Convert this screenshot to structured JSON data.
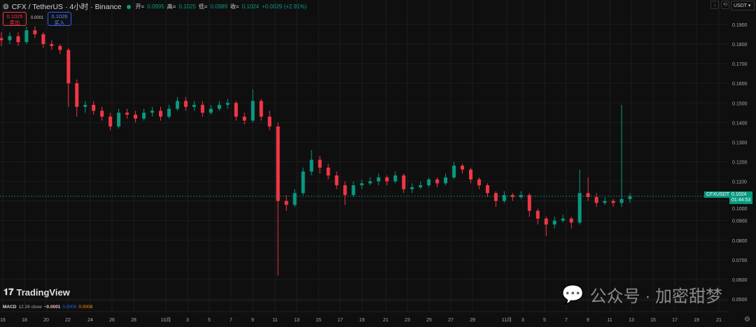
{
  "header": {
    "symbol": "CFX / TetherUS · 4小时 · Binance",
    "open_label": "开=",
    "open": "0.0995",
    "high_label": "高=",
    "high": "0.1025",
    "low_label": "低=",
    "low": "0.0989",
    "close_label": "收=",
    "close": "0.1024",
    "change": "+0.0029 (+2.91%)"
  },
  "trade": {
    "sell_price": "0.1025",
    "sell_label": "卖出",
    "spread": "0.0001",
    "buy_price": "0.1026",
    "buy_label": "买入"
  },
  "toolbar": {
    "currency": "USDT",
    "icons": [
      "arrow-down-icon",
      "refresh-icon"
    ]
  },
  "logo": "TradingView",
  "macd": {
    "label": "MACD",
    "params": "12 26 close",
    "v1": "−0.0001",
    "v2": "0.0006",
    "v3": "0.0008"
  },
  "watermark": "公众号 · 加密甜梦",
  "price_badge": {
    "symbol": "CFXUSDT",
    "price": "0.1024",
    "countdown": "01:44:53"
  },
  "colors": {
    "up": "#089981",
    "down": "#f23645"
  },
  "chart_data": {
    "type": "candlestick",
    "ylim": [
      0.05,
      0.19
    ],
    "y_ticks": [
      "0.1900",
      "0.1800",
      "0.1700",
      "0.1600",
      "0.1500",
      "0.1400",
      "0.1300",
      "0.1200",
      "0.1100",
      "0.1000",
      "0.0900",
      "0.0800",
      "0.0700",
      "0.0600",
      "0.0500"
    ],
    "x_ticks": [
      "16",
      "18",
      "20",
      "22",
      "24",
      "26",
      "28",
      "10月",
      "3",
      "5",
      "7",
      "9",
      "11",
      "13",
      "15",
      "17",
      "19",
      "21",
      "23",
      "25",
      "27",
      "29",
      "11月",
      "3",
      "5",
      "7",
      "9",
      "11",
      "13",
      "15",
      "17",
      "19",
      "21"
    ],
    "last_price": 0.1024,
    "candles": [
      [
        0.183,
        0.186,
        0.179,
        0.182
      ],
      [
        0.182,
        0.186,
        0.18,
        0.184
      ],
      [
        0.184,
        0.186,
        0.179,
        0.181
      ],
      [
        0.181,
        0.189,
        0.18,
        0.187
      ],
      [
        0.187,
        0.189,
        0.183,
        0.185
      ],
      [
        0.185,
        0.186,
        0.178,
        0.18
      ],
      [
        0.18,
        0.182,
        0.177,
        0.179
      ],
      [
        0.179,
        0.18,
        0.175,
        0.177
      ],
      [
        0.177,
        0.178,
        0.148,
        0.16
      ],
      [
        0.16,
        0.162,
        0.143,
        0.148
      ],
      [
        0.148,
        0.151,
        0.145,
        0.149
      ],
      [
        0.149,
        0.151,
        0.144,
        0.146
      ],
      [
        0.146,
        0.148,
        0.141,
        0.143
      ],
      [
        0.143,
        0.145,
        0.136,
        0.138
      ],
      [
        0.138,
        0.147,
        0.137,
        0.145
      ],
      [
        0.145,
        0.147,
        0.142,
        0.144
      ],
      [
        0.144,
        0.146,
        0.14,
        0.142
      ],
      [
        0.142,
        0.147,
        0.141,
        0.145
      ],
      [
        0.145,
        0.148,
        0.143,
        0.146
      ],
      [
        0.146,
        0.148,
        0.141,
        0.143
      ],
      [
        0.143,
        0.149,
        0.142,
        0.147
      ],
      [
        0.147,
        0.153,
        0.146,
        0.151
      ],
      [
        0.151,
        0.153,
        0.146,
        0.148
      ],
      [
        0.148,
        0.151,
        0.146,
        0.149
      ],
      [
        0.149,
        0.151,
        0.143,
        0.145
      ],
      [
        0.145,
        0.149,
        0.144,
        0.147
      ],
      [
        0.147,
        0.151,
        0.146,
        0.149
      ],
      [
        0.149,
        0.152,
        0.147,
        0.15
      ],
      [
        0.15,
        0.151,
        0.141,
        0.143
      ],
      [
        0.143,
        0.145,
        0.139,
        0.141
      ],
      [
        0.141,
        0.157,
        0.14,
        0.151
      ],
      [
        0.151,
        0.152,
        0.141,
        0.143
      ],
      [
        0.143,
        0.146,
        0.136,
        0.138
      ],
      [
        0.138,
        0.14,
        0.062,
        0.1
      ],
      [
        0.1,
        0.103,
        0.095,
        0.098
      ],
      [
        0.098,
        0.106,
        0.097,
        0.104
      ],
      [
        0.104,
        0.117,
        0.103,
        0.115
      ],
      [
        0.115,
        0.126,
        0.113,
        0.121
      ],
      [
        0.121,
        0.123,
        0.114,
        0.117
      ],
      [
        0.117,
        0.119,
        0.111,
        0.113
      ],
      [
        0.113,
        0.115,
        0.106,
        0.108
      ],
      [
        0.108,
        0.11,
        0.098,
        0.103
      ],
      [
        0.103,
        0.11,
        0.102,
        0.108
      ],
      [
        0.108,
        0.111,
        0.106,
        0.109
      ],
      [
        0.109,
        0.112,
        0.108,
        0.11
      ],
      [
        0.11,
        0.114,
        0.108,
        0.112
      ],
      [
        0.112,
        0.113,
        0.108,
        0.11
      ],
      [
        0.11,
        0.115,
        0.109,
        0.113
      ],
      [
        0.113,
        0.114,
        0.104,
        0.106
      ],
      [
        0.106,
        0.109,
        0.104,
        0.107
      ],
      [
        0.107,
        0.11,
        0.106,
        0.108
      ],
      [
        0.108,
        0.112,
        0.107,
        0.111
      ],
      [
        0.111,
        0.112,
        0.107,
        0.109
      ],
      [
        0.109,
        0.114,
        0.108,
        0.112
      ],
      [
        0.112,
        0.12,
        0.111,
        0.118
      ],
      [
        0.118,
        0.119,
        0.114,
        0.116
      ],
      [
        0.116,
        0.117,
        0.109,
        0.111
      ],
      [
        0.111,
        0.112,
        0.106,
        0.108
      ],
      [
        0.108,
        0.109,
        0.102,
        0.104
      ],
      [
        0.104,
        0.105,
        0.097,
        0.1
      ],
      [
        0.1,
        0.105,
        0.099,
        0.103
      ],
      [
        0.103,
        0.104,
        0.1,
        0.102
      ],
      [
        0.102,
        0.105,
        0.101,
        0.103
      ],
      [
        0.103,
        0.104,
        0.092,
        0.095
      ],
      [
        0.095,
        0.096,
        0.088,
        0.091
      ],
      [
        0.091,
        0.092,
        0.082,
        0.088
      ],
      [
        0.088,
        0.092,
        0.086,
        0.09
      ],
      [
        0.09,
        0.093,
        0.089,
        0.091
      ],
      [
        0.091,
        0.092,
        0.086,
        0.089
      ],
      [
        0.089,
        0.116,
        0.088,
        0.104
      ],
      [
        0.104,
        0.112,
        0.1,
        0.102
      ],
      [
        0.102,
        0.104,
        0.097,
        0.099
      ],
      [
        0.099,
        0.102,
        0.098,
        0.1
      ],
      [
        0.1,
        0.101,
        0.097,
        0.099
      ],
      [
        0.099,
        0.149,
        0.097,
        0.101
      ],
      [
        0.101,
        0.104,
        0.099,
        0.1024
      ]
    ]
  }
}
